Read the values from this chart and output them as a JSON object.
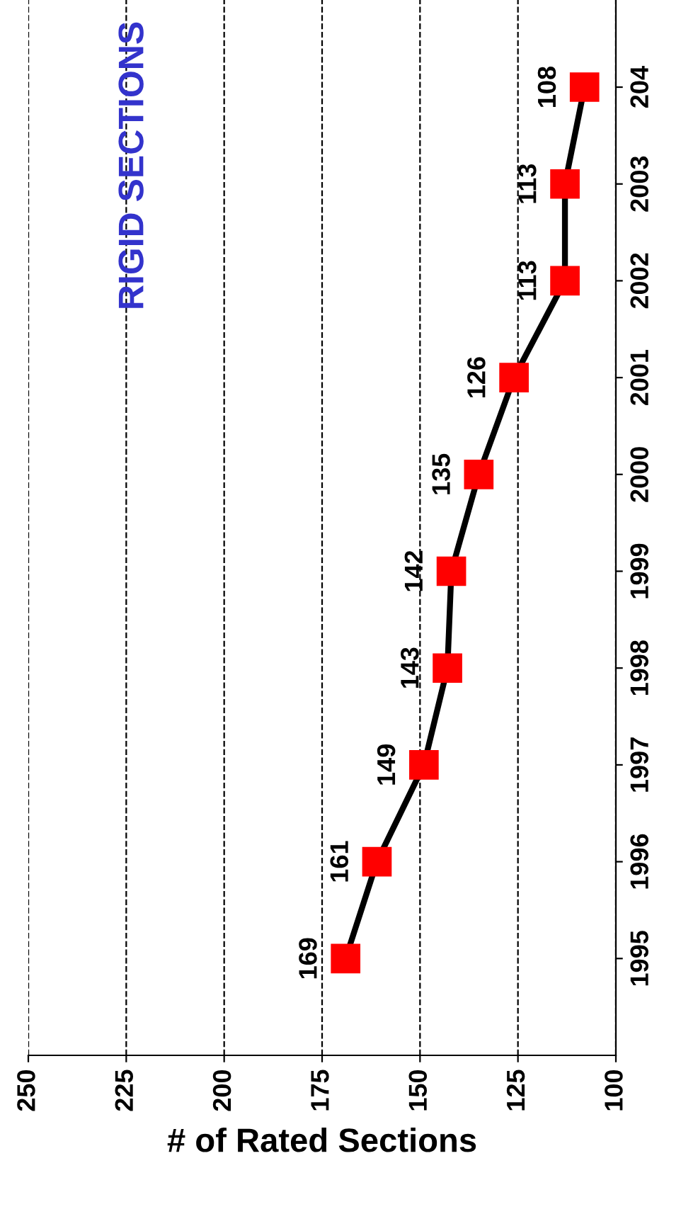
{
  "chart_data": {
    "type": "line",
    "orientation": "horizontal",
    "title": "RIGID SECTIONS",
    "xlabel": "# of Rated Sections",
    "categories": [
      "204",
      "2003",
      "2002",
      "2001",
      "2000",
      "1999",
      "1998",
      "1997",
      "1996",
      "1995"
    ],
    "series": [
      {
        "color": "#ff0000",
        "values": [
          108,
          113,
          113,
          126,
          135,
          142,
          143,
          149,
          161,
          169
        ]
      }
    ],
    "xlim": [
      250,
      100
    ],
    "xticks": [
      250,
      225,
      200,
      175,
      150,
      125,
      100
    ],
    "grid": "x",
    "marker": "square",
    "line_style": "solid",
    "data_labels": true,
    "legend": false
  }
}
